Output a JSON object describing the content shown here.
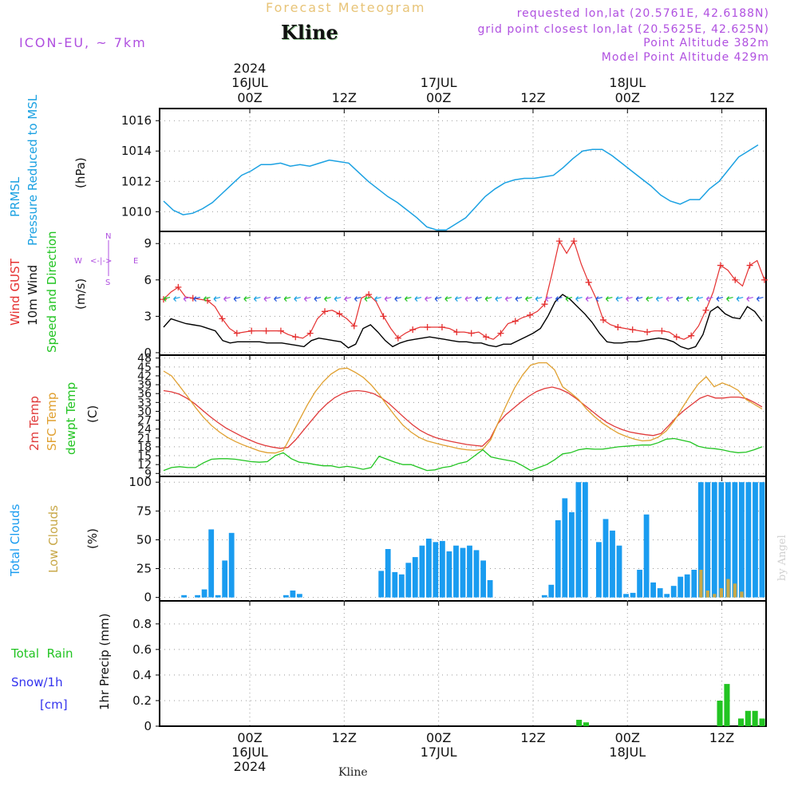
{
  "header": {
    "title": "Forecast Meteogram",
    "location": "Kline",
    "model": "ICON-EU, ~ 7km",
    "requested": "requested lon,lat (20.5761E, 42.6188N)",
    "gridpoint": "grid point closest lon,lat (20.5625E, 42.625N)",
    "point_alt": "Point Altitude 382m",
    "model_alt": "Model Point Altitude 429m",
    "footer_name": "Kline",
    "credit": "by Angel"
  },
  "time_axis": {
    "year": "2024",
    "ticks": [
      {
        "label": "00Z",
        "date": "16JUL",
        "year": "2024"
      },
      {
        "label": "12Z",
        "date": "",
        "year": ""
      },
      {
        "label": "00Z",
        "date": "17JUL",
        "year": ""
      },
      {
        "label": "12Z",
        "date": "",
        "year": ""
      },
      {
        "label": "00Z",
        "date": "18JUL",
        "year": ""
      },
      {
        "label": "12Z",
        "date": "",
        "year": ""
      }
    ]
  },
  "panel_labels": {
    "pressure": {
      "line1": "PRMSL",
      "line2": "Pressure Reduced to MSL",
      "unit": "(hPa)"
    },
    "wind": {
      "gust": "Wind GUST",
      "wind10": "10m Wind",
      "speed": "Speed and Direction",
      "unit": "(m/s)",
      "compass_n": "N",
      "compass_s": "S",
      "compass_w": "W",
      "compass_e": "E",
      "compass_arrows": "<-|->"
    },
    "temp": {
      "t2m": "2m Temp",
      "sfc": "SFC Temp",
      "dew": "dewpt Temp",
      "unit": "(C)"
    },
    "clouds": {
      "total": "Total Clouds",
      "low": "Low Clouds",
      "unit": "(%)"
    },
    "precip": {
      "rain": "Total  Rain",
      "snow": "Snow/1h",
      "snow_unit": "[cm]",
      "axis": "1hr Precip (mm)"
    }
  },
  "colors": {
    "pressure": "#1ba1e2",
    "gust": "#e53030",
    "wind": "#000000",
    "t2m": "#e03a3a",
    "sfc": "#e0a030",
    "dew": "#22c422",
    "total_clouds": "#1a9cf0",
    "low_clouds": "#c8a848",
    "rain": "#22c422",
    "snow_label": "#3333ee",
    "title_orange": "#e8c478",
    "purple": "#b050e0",
    "grid": "#999999"
  },
  "chart_data": [
    {
      "type": "line",
      "title": "PRMSL Pressure Reduced to MSL",
      "ylabel": "(hPa)",
      "ylim": [
        1008.7,
        1016.8
      ],
      "yticks": [
        1010,
        1012,
        1014,
        1016
      ],
      "x_hours_from_16JUL00Z": "hourly from -9 to 53",
      "series": [
        {
          "name": "PRMSL",
          "values": [
            1010.7,
            1010.1,
            1009.8,
            1009.9,
            1010.2,
            1010.6,
            1011.2,
            1011.8,
            1012.4,
            1012.7,
            1013.1,
            1013.1,
            1013.2,
            1013.0,
            1013.1,
            1013.0,
            1013.2,
            1013.4,
            1013.3,
            1013.2,
            1012.6,
            1012.0,
            1011.5,
            1011.0,
            1010.6,
            1010.1,
            1009.6,
            1009.0,
            1008.8,
            1008.8,
            1009.2,
            1009.6,
            1010.3,
            1011.0,
            1011.5,
            1011.9,
            1012.1,
            1012.2,
            1012.2,
            1012.3,
            1012.4,
            1012.9,
            1013.5,
            1014.0,
            1014.1,
            1014.1,
            1013.7,
            1013.2,
            1012.7,
            1012.2,
            1011.7,
            1011.1,
            1010.7,
            1010.5,
            1010.8,
            1010.8,
            1011.5,
            1012.0,
            1012.8,
            1013.6,
            1014.0,
            1014.4
          ]
        }
      ]
    },
    {
      "type": "line",
      "title": "Wind GUST / 10m Wind Speed and Direction",
      "ylabel": "(m/s)",
      "ylim": [
        -0.2,
        10
      ],
      "yticks": [
        0,
        3,
        6,
        9
      ],
      "series": [
        {
          "name": "Wind GUST",
          "values": [
            4.4,
            5.0,
            5.4,
            4.6,
            4.5,
            4.4,
            4.3,
            3.8,
            2.8,
            2.0,
            1.6,
            1.7,
            1.8,
            1.8,
            1.8,
            1.8,
            1.8,
            1.5,
            1.3,
            1.2,
            1.6,
            2.8,
            3.4,
            3.5,
            3.2,
            2.8,
            2.2,
            4.5,
            4.8,
            4.2,
            3.0,
            2.0,
            1.2,
            1.6,
            1.9,
            2.1,
            2.1,
            2.1,
            2.1,
            2.0,
            1.7,
            1.7,
            1.6,
            1.7,
            1.3,
            1.1,
            1.6,
            2.4,
            2.6,
            2.9,
            3.1,
            3.4,
            4.0,
            6.5,
            9.2,
            8.2,
            9.2,
            7.3,
            5.8,
            4.5,
            2.7,
            2.3,
            2.1,
            2.0,
            1.9,
            1.8,
            1.7,
            1.8,
            1.8,
            1.7,
            1.3,
            1.1,
            1.4,
            2.2,
            3.5,
            5.0,
            7.2,
            6.8,
            6.0,
            5.5,
            7.2,
            7.6,
            6.0
          ]
        },
        {
          "name": "10m Wind",
          "values": [
            2.1,
            2.8,
            2.6,
            2.4,
            2.3,
            2.2,
            2.0,
            1.8,
            1.0,
            0.8,
            0.9,
            0.9,
            0.9,
            0.9,
            0.8,
            0.8,
            0.8,
            0.7,
            0.6,
            0.5,
            1.0,
            1.2,
            1.1,
            1.0,
            0.9,
            0.4,
            0.7,
            2.0,
            2.3,
            1.7,
            1.0,
            0.5,
            0.8,
            1.0,
            1.1,
            1.2,
            1.3,
            1.2,
            1.1,
            1.0,
            0.9,
            0.9,
            0.8,
            0.8,
            0.6,
            0.5,
            0.7,
            0.7,
            1.0,
            1.3,
            1.6,
            2.0,
            3.0,
            4.2,
            4.8,
            4.4,
            3.8,
            3.2,
            2.5,
            1.6,
            0.9,
            0.8,
            0.8,
            0.9,
            0.9,
            1.0,
            1.1,
            1.2,
            1.1,
            0.9,
            0.5,
            0.3,
            0.5,
            1.5,
            3.4,
            3.8,
            3.2,
            2.9,
            2.8,
            3.8,
            3.4,
            2.6
          ]
        }
      ]
    },
    {
      "type": "line",
      "title": "2m Temp / SFC Temp / dewpt Temp",
      "ylabel": "(C)",
      "ylim": [
        8,
        49
      ],
      "yticks": [
        9,
        12,
        15,
        18,
        21,
        24,
        27,
        30,
        33,
        36,
        39,
        42,
        45,
        48
      ],
      "series": [
        {
          "name": "2m Temp",
          "values": [
            37.0,
            36.6,
            35.8,
            34.4,
            32.6,
            30.4,
            28.2,
            26.2,
            24.4,
            23.0,
            21.6,
            20.4,
            19.3,
            18.5,
            17.9,
            17.5,
            17.8,
            20.4,
            23.6,
            26.8,
            29.9,
            32.5,
            34.6,
            36.0,
            36.8,
            37.0,
            36.7,
            36.0,
            34.6,
            32.6,
            30.2,
            27.8,
            25.5,
            23.6,
            22.2,
            21.1,
            20.4,
            19.8,
            19.3,
            18.8,
            18.5,
            18.2,
            20.7,
            25.8,
            28.8,
            31.0,
            33.2,
            35.1,
            36.7,
            37.7,
            38.2,
            37.5,
            36.3,
            34.5,
            32.4,
            30.3,
            28.2,
            26.3,
            24.9,
            23.8,
            23.0,
            22.5,
            22.1,
            21.8,
            22.5,
            25.2,
            28.1,
            30.4,
            32.4,
            34.4,
            35.4,
            34.5,
            34.5,
            34.8,
            34.8,
            34.3,
            33.0,
            31.5
          ]
        },
        {
          "name": "SFC Temp",
          "values": [
            43.6,
            42.0,
            38.5,
            35.0,
            31.3,
            28.0,
            25.2,
            23.0,
            21.2,
            19.8,
            18.6,
            17.6,
            16.6,
            16.0,
            15.9,
            16.8,
            21.8,
            27.0,
            32.1,
            36.6,
            40.0,
            42.6,
            44.3,
            44.6,
            43.2,
            41.5,
            39.0,
            35.8,
            32.0,
            28.5,
            25.3,
            23.0,
            21.2,
            20.0,
            19.3,
            18.6,
            18.0,
            17.4,
            17.0,
            16.8,
            17.2,
            20.4,
            26.6,
            32.4,
            38.0,
            42.3,
            45.6,
            46.4,
            46.4,
            44.0,
            38.3,
            36.3,
            34.0,
            30.8,
            28.2,
            26.0,
            24.2,
            22.6,
            21.5,
            20.6,
            20.0,
            20.2,
            21.3,
            23.4,
            26.8,
            31.2,
            35.4,
            39.2,
            41.7,
            38.3,
            39.6,
            38.6,
            37.1,
            34.0,
            32.4,
            30.8
          ]
        },
        {
          "name": "dewpt Temp",
          "values": [
            10.0,
            11.0,
            11.3,
            11.0,
            11.0,
            12.6,
            13.8,
            14.0,
            14.0,
            13.8,
            13.4,
            13.0,
            12.8,
            13.0,
            15.0,
            16.0,
            14.0,
            12.8,
            12.5,
            12.0,
            11.6,
            11.6,
            11.0,
            11.4,
            11.0,
            10.4,
            11.0,
            14.8,
            13.8,
            12.8,
            12.0,
            12.0,
            11.0,
            10.0,
            10.2,
            11.0,
            11.4,
            12.4,
            13.0,
            15.0,
            17.0,
            14.6,
            14.0,
            13.5,
            13.0,
            11.6,
            10.0,
            11.0,
            12.0,
            13.6,
            15.6,
            16.0,
            17.0,
            17.4,
            17.2,
            17.2,
            17.6,
            18.0,
            18.2,
            18.4,
            18.6,
            18.6,
            19.4,
            20.6,
            20.8,
            20.2,
            19.6,
            18.2,
            17.6,
            17.4,
            17.0,
            16.4,
            16.0,
            16.2,
            17.0,
            18.0
          ]
        }
      ]
    },
    {
      "type": "bar",
      "title": "Total Clouds / Low Clouds",
      "ylabel": "(%)",
      "ylim": [
        -3,
        105
      ],
      "yticks": [
        0,
        25,
        50,
        75,
        100
      ],
      "series": [
        {
          "name": "Total Clouds",
          "values": [
            0,
            0,
            0,
            2,
            0,
            2,
            7,
            59,
            2,
            32,
            56,
            0,
            0,
            0,
            0,
            0,
            0,
            0,
            2,
            6,
            3,
            0,
            0,
            0,
            0,
            0,
            0,
            0,
            0,
            0,
            0,
            0,
            23,
            42,
            22,
            20,
            30,
            35,
            45,
            51,
            48,
            49,
            40,
            45,
            43,
            45,
            41,
            32,
            15,
            0,
            0,
            0,
            0,
            0,
            0,
            0,
            2,
            11,
            67,
            86,
            74,
            100,
            100,
            0,
            48,
            68,
            58,
            45,
            3,
            4,
            24,
            72,
            13,
            8,
            3,
            10,
            18,
            20,
            24,
            100,
            100,
            100,
            100,
            100,
            100,
            100,
            100,
            100,
            100
          ]
        },
        {
          "name": "Low Clouds",
          "values": [
            0,
            0,
            0,
            0,
            0,
            0,
            0,
            0,
            0,
            0,
            0,
            0,
            0,
            0,
            0,
            0,
            0,
            0,
            0,
            0,
            0,
            0,
            0,
            0,
            0,
            0,
            0,
            0,
            0,
            0,
            0,
            0,
            0,
            0,
            0,
            0,
            0,
            0,
            0,
            0,
            0,
            0,
            0,
            0,
            0,
            0,
            0,
            0,
            0,
            0,
            0,
            0,
            0,
            0,
            0,
            0,
            0,
            0,
            0,
            0,
            0,
            0,
            0,
            0,
            0,
            0,
            0,
            0,
            0,
            0,
            0,
            0,
            0,
            0,
            0,
            0,
            0,
            0,
            0,
            24,
            6,
            3,
            8,
            16,
            12,
            5,
            0
          ]
        }
      ]
    },
    {
      "type": "bar",
      "title": "1hr Precip",
      "ylabel": "1hr Precip (mm)",
      "ylim": [
        0,
        0.98
      ],
      "yticks": [
        "0",
        "0.2",
        "0.4",
        "0.6",
        "0.8"
      ],
      "series": [
        {
          "name": "Total Rain",
          "values": [
            0,
            0,
            0,
            0,
            0,
            0,
            0,
            0,
            0,
            0,
            0,
            0,
            0,
            0,
            0,
            0,
            0,
            0,
            0,
            0,
            0,
            0,
            0,
            0,
            0,
            0,
            0,
            0,
            0,
            0,
            0,
            0,
            0,
            0,
            0,
            0,
            0,
            0,
            0,
            0,
            0,
            0,
            0,
            0,
            0,
            0,
            0,
            0,
            0,
            0,
            0,
            0,
            0,
            0,
            0,
            0,
            0,
            0,
            0,
            0.05,
            0.03,
            0,
            0,
            0,
            0,
            0,
            0,
            0,
            0,
            0,
            0,
            0,
            0,
            0,
            0,
            0,
            0,
            0,
            0,
            0.2,
            0.33,
            0,
            0.06,
            0.12,
            0.12,
            0.06
          ]
        }
      ]
    }
  ]
}
